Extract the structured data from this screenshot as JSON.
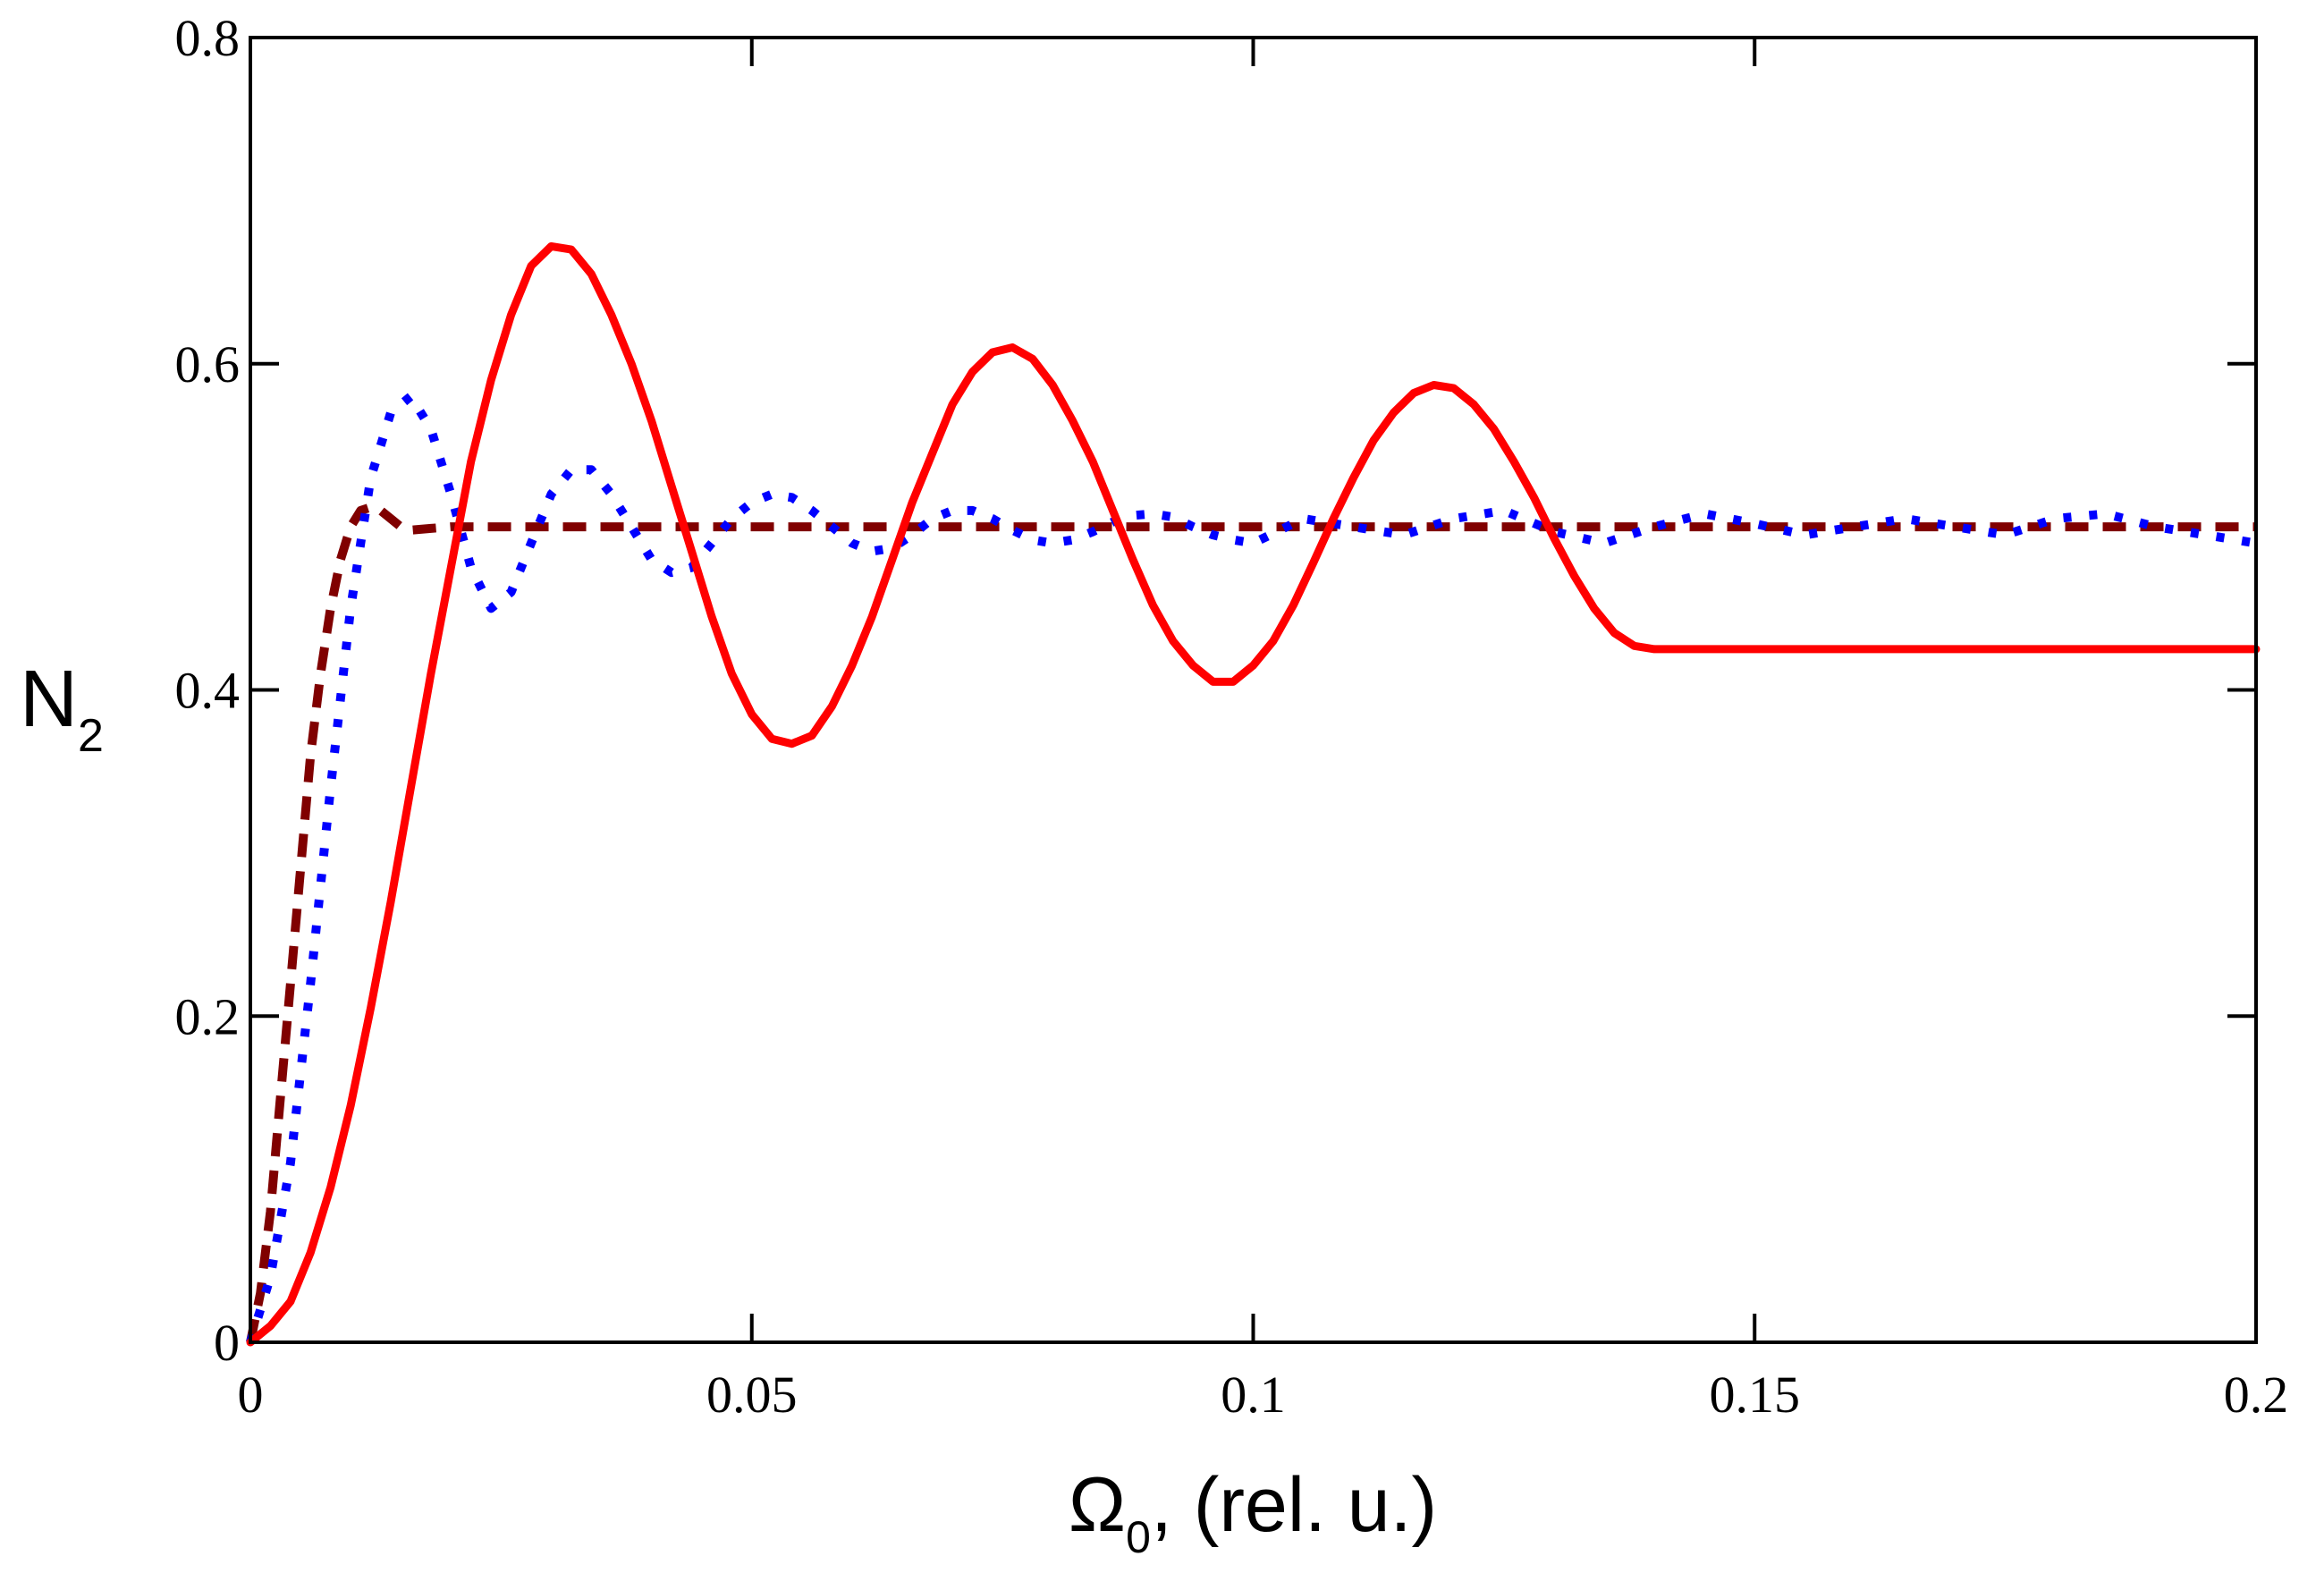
{
  "chart_data": {
    "type": "line",
    "title": "",
    "xlabel": {
      "symbol": "Ω",
      "sub": "0",
      "rest": ", (rel. u.)"
    },
    "ylabel": {
      "symbol": "N",
      "sub": "2"
    },
    "xlim": [
      0,
      0.2
    ],
    "ylim": [
      0,
      0.8
    ],
    "xticks": [
      {
        "value": 0,
        "label": "0"
      },
      {
        "value": 0.05,
        "label": "0.05"
      },
      {
        "value": 0.1,
        "label": "0.1"
      },
      {
        "value": 0.15,
        "label": "0.15"
      },
      {
        "value": 0.2,
        "label": "0.2"
      }
    ],
    "yticks": [
      {
        "value": 0,
        "label": "0"
      },
      {
        "value": 0.2,
        "label": "0.2"
      },
      {
        "value": 0.4,
        "label": "0.4"
      },
      {
        "value": 0.6,
        "label": "0.6"
      },
      {
        "value": 0.8,
        "label": "0.8"
      }
    ],
    "grid": false,
    "series": [
      {
        "name": "solid",
        "color": "#ff0000",
        "style": "solid",
        "x": [
          0,
          0.002,
          0.004,
          0.006,
          0.008,
          0.01,
          0.012,
          0.014,
          0.016,
          0.018,
          0.02,
          0.022,
          0.024,
          0.026,
          0.028,
          0.03,
          0.032,
          0.034,
          0.036,
          0.038,
          0.04,
          0.042,
          0.044,
          0.046,
          0.048,
          0.05,
          0.052,
          0.054,
          0.056,
          0.058,
          0.06,
          0.062,
          0.064,
          0.066,
          0.068,
          0.07,
          0.072,
          0.074,
          0.076,
          0.078,
          0.08,
          0.082,
          0.084,
          0.086,
          0.088,
          0.09,
          0.092,
          0.094,
          0.096,
          0.098,
          0.1,
          0.102,
          0.104,
          0.106,
          0.108,
          0.11,
          0.112,
          0.114,
          0.116,
          0.118,
          0.12,
          0.122,
          0.124,
          0.126,
          0.128,
          0.13,
          0.132,
          0.134,
          0.136,
          0.138,
          0.14,
          0.142,
          0.144,
          0.146,
          0.148,
          0.15,
          0.152,
          0.154,
          0.156,
          0.158,
          0.16,
          0.162,
          0.164,
          0.166,
          0.168,
          0.17,
          0.172,
          0.174,
          0.176,
          0.178,
          0.18,
          0.182,
          0.184,
          0.186,
          0.188,
          0.19,
          0.192,
          0.194,
          0.196,
          0.198,
          0.2
        ],
        "values": [
          0,
          0.01,
          0.025,
          0.055,
          0.095,
          0.145,
          0.205,
          0.27,
          0.34,
          0.41,
          0.475,
          0.54,
          0.59,
          0.63,
          0.66,
          0.672,
          0.67,
          0.655,
          0.63,
          0.6,
          0.565,
          0.525,
          0.485,
          0.445,
          0.41,
          0.385,
          0.37,
          0.367,
          0.372,
          0.39,
          0.415,
          0.445,
          0.48,
          0.515,
          0.545,
          0.575,
          0.595,
          0.607,
          0.61,
          0.603,
          0.587,
          0.565,
          0.54,
          0.51,
          0.48,
          0.452,
          0.43,
          0.415,
          0.405,
          0.405,
          0.415,
          0.43,
          0.452,
          0.478,
          0.505,
          0.53,
          0.553,
          0.57,
          0.582,
          0.587,
          0.585,
          0.575,
          0.56,
          0.54,
          0.518,
          0.493,
          0.47,
          0.45,
          0.435,
          0.427,
          0.425,
          0.425,
          0.425,
          0.425,
          0.425,
          0.425,
          0.425,
          0.425,
          0.425,
          0.425,
          0.425,
          0.425,
          0.425,
          0.425,
          0.425,
          0.425,
          0.425,
          0.425,
          0.425,
          0.425,
          0.425,
          0.425,
          0.425,
          0.425,
          0.425,
          0.425,
          0.425,
          0.425,
          0.425,
          0.425,
          0.425
        ]
      },
      {
        "name": "dotted",
        "color": "#0000ff",
        "style": "dotted",
        "x": [
          0,
          0.002,
          0.004,
          0.006,
          0.008,
          0.01,
          0.012,
          0.014,
          0.016,
          0.018,
          0.02,
          0.022,
          0.024,
          0.026,
          0.028,
          0.03,
          0.032,
          0.034,
          0.036,
          0.038,
          0.04,
          0.042,
          0.044,
          0.046,
          0.048,
          0.05,
          0.052,
          0.054,
          0.056,
          0.058,
          0.06,
          0.062,
          0.064,
          0.066,
          0.068,
          0.07,
          0.072,
          0.074,
          0.076,
          0.078,
          0.08,
          0.082,
          0.084,
          0.086,
          0.088,
          0.09,
          0.092,
          0.094,
          0.096,
          0.098,
          0.1,
          0.105,
          0.11,
          0.115,
          0.12,
          0.125,
          0.13,
          0.135,
          0.14,
          0.145,
          0.15,
          0.155,
          0.16,
          0.165,
          0.17,
          0.175,
          0.18,
          0.185,
          0.19,
          0.195,
          0.2
        ],
        "values": [
          0,
          0.04,
          0.11,
          0.22,
          0.34,
          0.45,
          0.53,
          0.57,
          0.58,
          0.56,
          0.52,
          0.475,
          0.45,
          0.46,
          0.49,
          0.52,
          0.535,
          0.535,
          0.52,
          0.5,
          0.48,
          0.472,
          0.475,
          0.49,
          0.505,
          0.515,
          0.52,
          0.518,
          0.51,
          0.5,
          0.49,
          0.485,
          0.487,
          0.495,
          0.505,
          0.51,
          0.51,
          0.505,
          0.498,
          0.492,
          0.49,
          0.492,
          0.497,
          0.503,
          0.507,
          0.508,
          0.506,
          0.5,
          0.495,
          0.492,
          0.49,
          0.505,
          0.5,
          0.495,
          0.505,
          0.51,
          0.497,
          0.49,
          0.5,
          0.508,
          0.502,
          0.495,
          0.5,
          0.505,
          0.5,
          0.495,
          0.505,
          0.508,
          0.5,
          0.495,
          0.49
        ]
      },
      {
        "name": "dashed",
        "color": "#800000",
        "style": "dashed",
        "x": [
          0,
          0.001,
          0.002,
          0.003,
          0.004,
          0.005,
          0.006,
          0.007,
          0.008,
          0.009,
          0.01,
          0.011,
          0.012,
          0.013,
          0.014,
          0.015,
          0.016,
          0.018,
          0.02,
          0.025,
          0.03,
          0.05,
          0.1,
          0.15,
          0.2
        ],
        "values": [
          0,
          0.03,
          0.08,
          0.15,
          0.22,
          0.29,
          0.36,
          0.41,
          0.45,
          0.48,
          0.5,
          0.51,
          0.512,
          0.51,
          0.505,
          0.5,
          0.498,
          0.499,
          0.5,
          0.5,
          0.5,
          0.5,
          0.5,
          0.5,
          0.5
        ]
      }
    ]
  }
}
